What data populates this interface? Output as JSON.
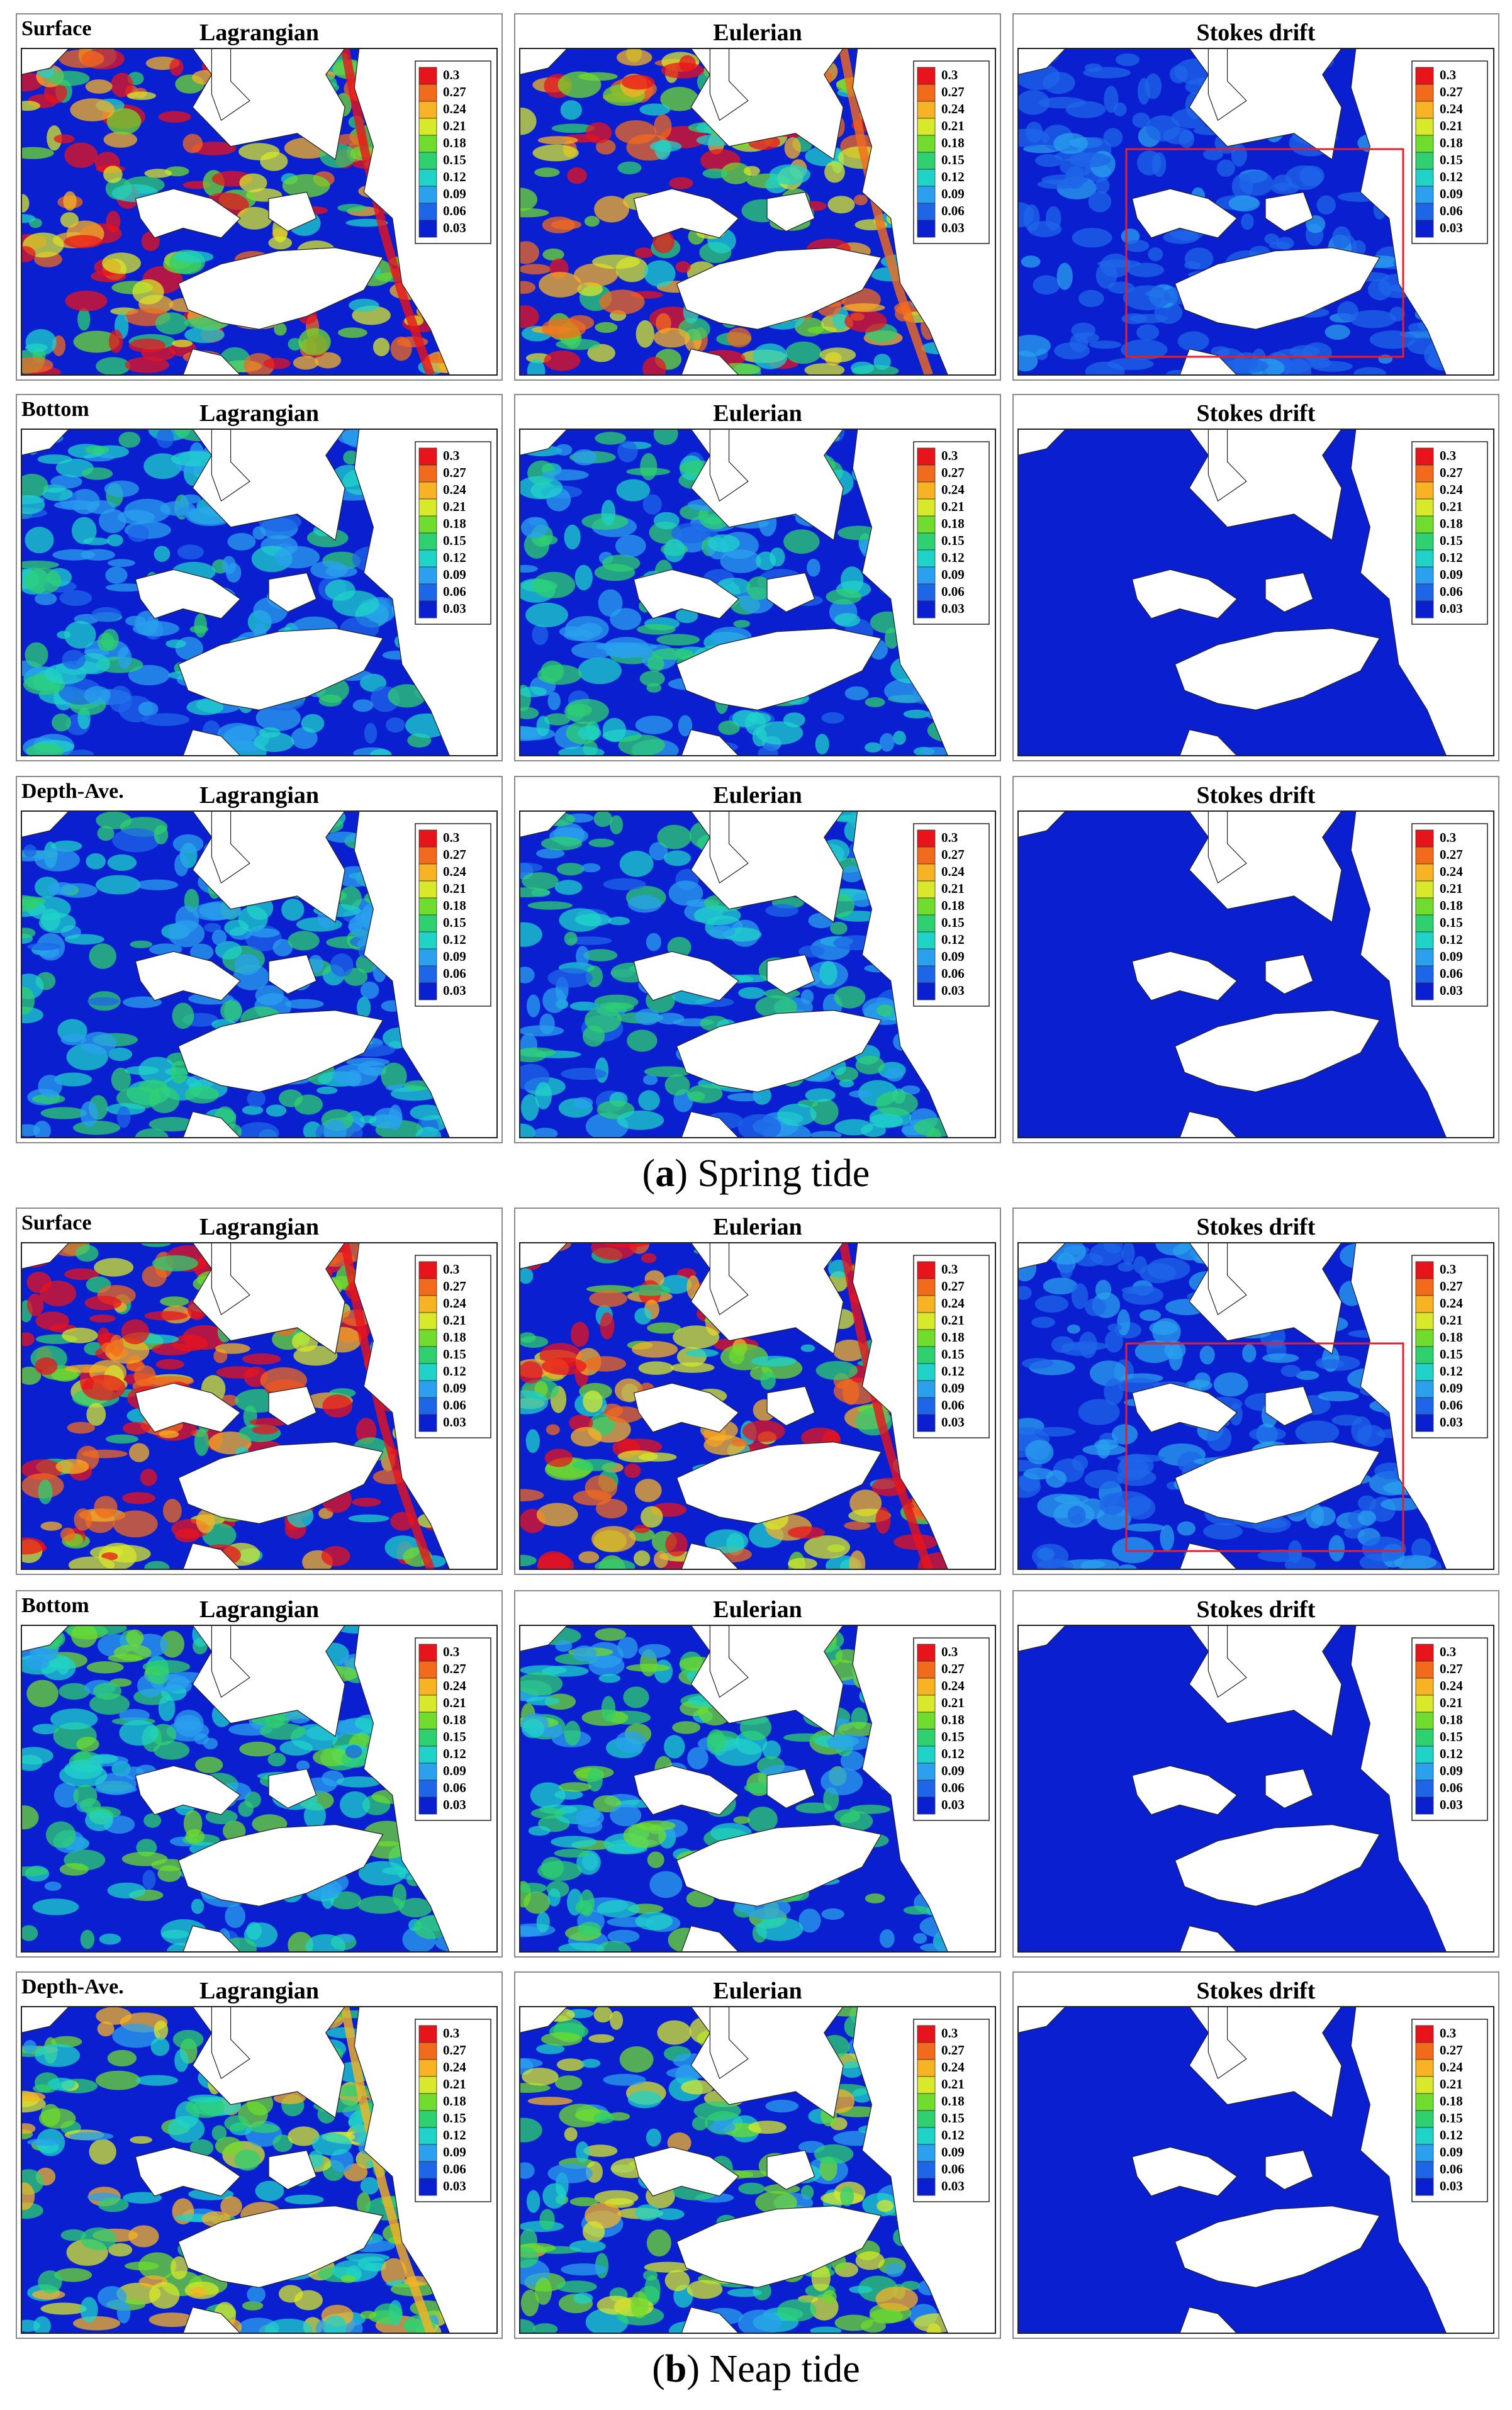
{
  "sections": [
    {
      "caption_letter": "a",
      "caption_text": "Spring tide",
      "rows": [
        {
          "label": "Surface",
          "panels": [
            "Lagrangian",
            "Eulerian",
            "Stokes drift"
          ],
          "intensity": [
            0.75,
            0.7,
            0.12
          ],
          "highlight_box": true
        },
        {
          "label": "Bottom",
          "panels": [
            "Lagrangian",
            "Eulerian",
            "Stokes drift"
          ],
          "intensity": [
            0.3,
            0.32,
            0.03
          ],
          "highlight_box": false
        },
        {
          "label": "Depth-Ave.",
          "panels": [
            "Lagrangian",
            "Eulerian",
            "Stokes drift"
          ],
          "intensity": [
            0.33,
            0.33,
            0.03
          ],
          "highlight_box": false
        }
      ]
    },
    {
      "caption_letter": "b",
      "caption_text": "Neap tide",
      "rows": [
        {
          "label": "Surface",
          "panels": [
            "Lagrangian",
            "Eulerian",
            "Stokes drift"
          ],
          "intensity": [
            0.85,
            0.78,
            0.16
          ],
          "highlight_box": true
        },
        {
          "label": "Bottom",
          "panels": [
            "Lagrangian",
            "Eulerian",
            "Stokes drift"
          ],
          "intensity": [
            0.4,
            0.4,
            0.04
          ],
          "highlight_box": false
        },
        {
          "label": "Depth-Ave.",
          "panels": [
            "Lagrangian",
            "Eulerian",
            "Stokes drift"
          ],
          "intensity": [
            0.55,
            0.5,
            0.05
          ],
          "highlight_box": false
        }
      ]
    }
  ],
  "colorbar_ticks": [
    "0.3",
    "0.27",
    "0.24",
    "0.21",
    "0.18",
    "0.15",
    "0.12",
    "0.09",
    "0.06",
    "0.03"
  ],
  "colorbar_colors": [
    "#e8141b",
    "#f26b1d",
    "#f7b324",
    "#d8e82a",
    "#6fdc2e",
    "#2fd06f",
    "#1fd3c9",
    "#2aa0ee",
    "#1e66e8",
    "#0a1fd0"
  ],
  "highlight_color": "#e81e2a",
  "land_color": "#ffffff",
  "low_color": "#0a1fd0"
}
